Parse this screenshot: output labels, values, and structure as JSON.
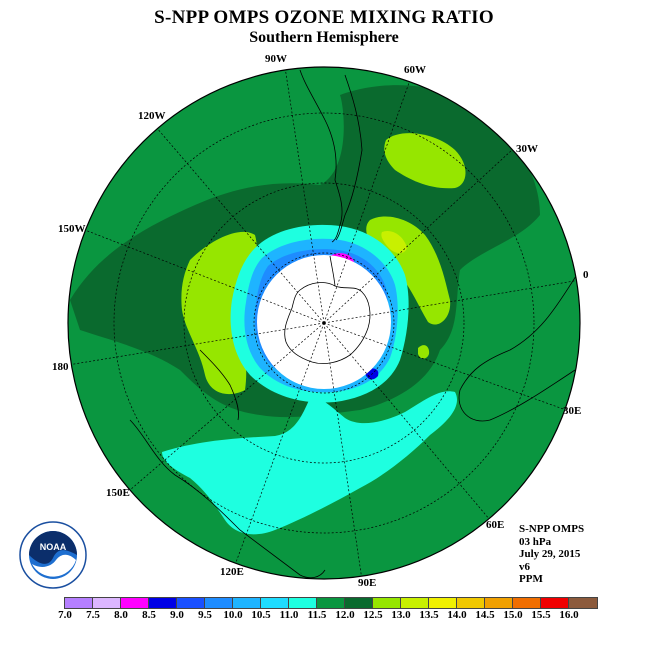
{
  "header": {
    "title": "S-NPP OMPS OZONE MIXING RATIO",
    "subtitle": "Southern Hemisphere"
  },
  "map": {
    "projection": "polar stereographic, south pole",
    "longitude_labels": [
      "90W",
      "60W",
      "30W",
      "0",
      "30E",
      "60E",
      "90E",
      "120E",
      "150E",
      "180",
      "150W",
      "120W"
    ]
  },
  "info": {
    "instrument": "S-NPP OMPS",
    "level": "03 hPa",
    "date": "July 29, 2015",
    "version": "v6",
    "units": "PPM"
  },
  "colorbar": {
    "tick_labels": [
      "7.0",
      "7.5",
      "8.0",
      "8.5",
      "9.0",
      "9.5",
      "10.0",
      "10.5",
      "11.0",
      "11.5",
      "12.0",
      "12.5",
      "13.0",
      "13.5",
      "14.0",
      "14.5",
      "15.0",
      "15.5",
      "16.0"
    ],
    "colors": [
      "#b57fff",
      "#dcb6ff",
      "#ff00ff",
      "#0000e6",
      "#1a50ff",
      "#1e8cff",
      "#1eb4ff",
      "#1edcff",
      "#1effe0",
      "#0a9640",
      "#0a6a2e",
      "#96e600",
      "#c8f000",
      "#f0f000",
      "#f0c800",
      "#f0a000",
      "#f06e00",
      "#f00000",
      "#8c5a3c"
    ]
  },
  "logo": {
    "text": "NOAA",
    "icon": "noaa-logo-icon"
  }
}
